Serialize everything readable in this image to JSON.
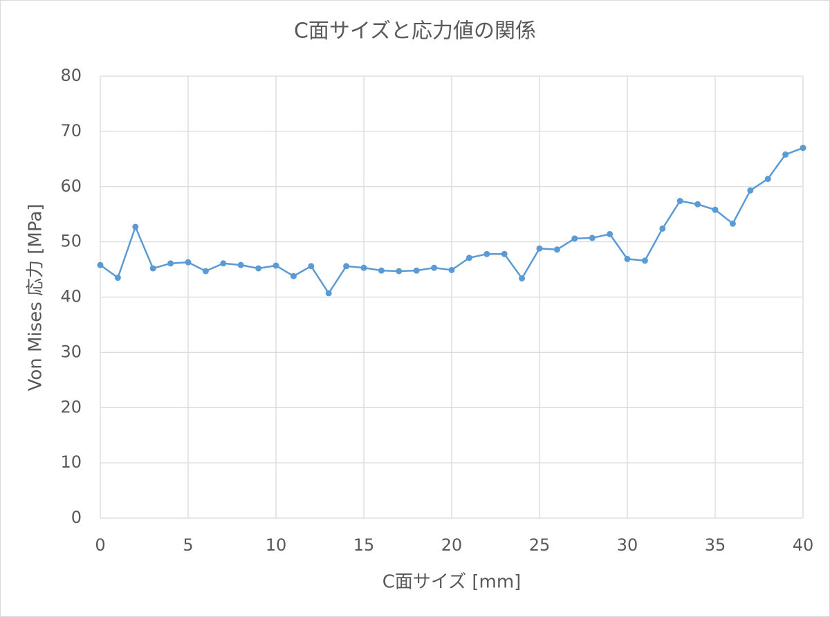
{
  "chart_data": {
    "type": "line",
    "title": "C面サイズと応力値の関係",
    "x_label": "C面サイズ [mm]",
    "y_label": "Von Mises 応力 [MPa]",
    "x": [
      0,
      1,
      2,
      3,
      4,
      5,
      6,
      7,
      8,
      9,
      10,
      11,
      12,
      13,
      14,
      15,
      16,
      17,
      18,
      19,
      20,
      21,
      22,
      23,
      24,
      25,
      26,
      27,
      28,
      29,
      30,
      31,
      32,
      33,
      34,
      35,
      36,
      37,
      38,
      39,
      40
    ],
    "series": [
      {
        "name": "Von Mises 応力",
        "color": "#5b9bd5",
        "values": [
          45.8,
          43.5,
          52.7,
          45.2,
          46.1,
          46.3,
          44.7,
          46.1,
          45.8,
          45.2,
          45.7,
          43.8,
          45.6,
          40.7,
          45.6,
          45.3,
          44.8,
          44.7,
          44.8,
          45.3,
          44.9,
          47.1,
          47.8,
          47.8,
          43.4,
          48.8,
          48.6,
          50.6,
          50.7,
          51.4,
          46.9,
          46.6,
          52.4,
          57.4,
          56.8,
          55.8,
          53.3,
          59.3,
          61.4,
          65.8,
          67.0
        ]
      }
    ],
    "xlim": [
      0,
      40
    ],
    "xticks": [
      0,
      5,
      10,
      15,
      20,
      25,
      30,
      35,
      40
    ],
    "ylim": [
      0,
      80
    ],
    "yticks": [
      0,
      10,
      20,
      30,
      40,
      50,
      60,
      70,
      80
    ],
    "grid": true
  }
}
